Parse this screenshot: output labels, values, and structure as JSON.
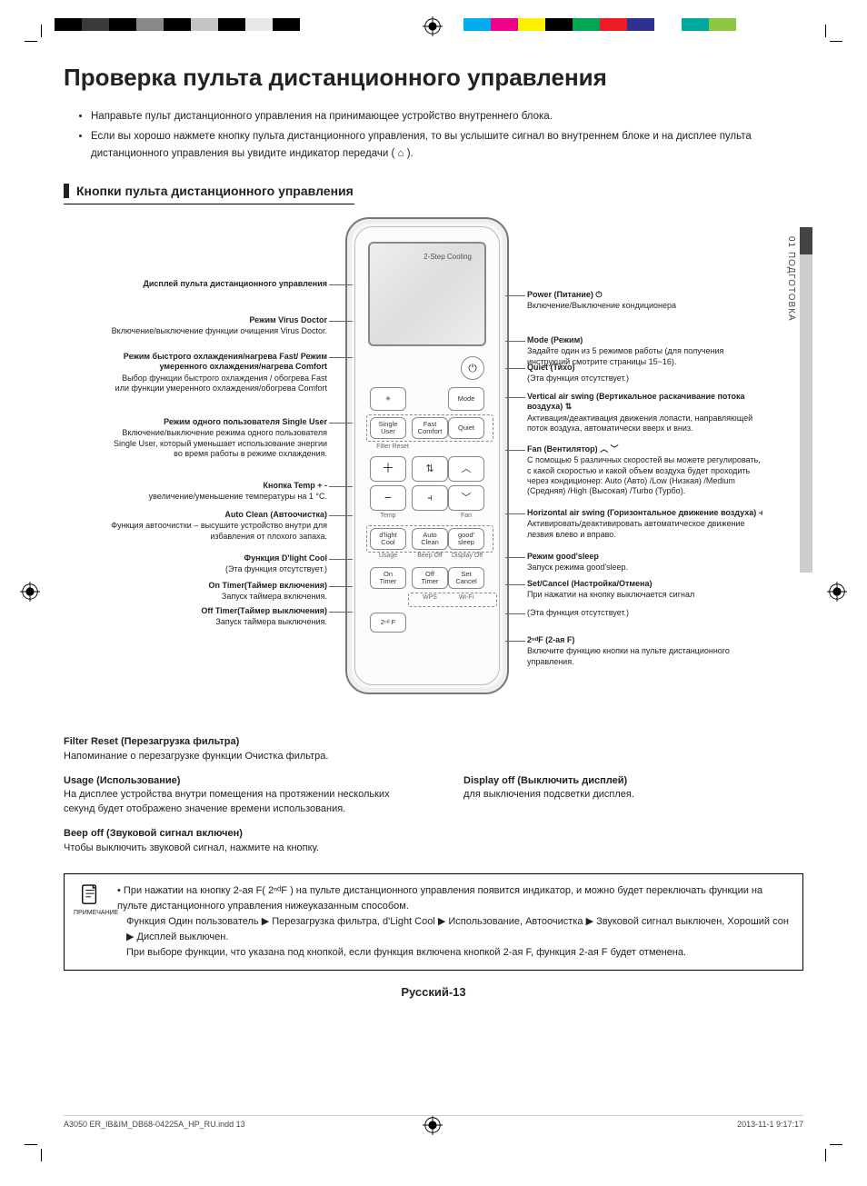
{
  "colorbar_left": [
    "#000",
    "#3a3a3a",
    "#000",
    "#888",
    "#000",
    "#c4c4c4",
    "#000",
    "#e8e8e8",
    "#000",
    "#fff"
  ],
  "colorbar_right": [
    "#00aeef",
    "#ec008c",
    "#fff200",
    "#000",
    "#00a651",
    "#ed1c24",
    "#2e3192",
    "#fff",
    "#00a99d",
    "#8dc63f"
  ],
  "side_tab": "01  ПОДГОТОВКА",
  "title": "Проверка пульта дистанционного управления",
  "intro": [
    "Направьте пульт дистанционного управления на принимающее устройство внутреннего блока.",
    "Если вы хорошо нажмете кнопку пульта дистанционного управления, то вы услышите сигнал во внутреннем блоке и на дисплее пульта дистанционного управления вы увидите индикатор передачи ( ⌂ )."
  ],
  "section_heading": "Кнопки пульта дистанционного управления",
  "remote": {
    "screen_label": "2-Step Cooling",
    "buttons": {
      "power": "⏻",
      "virus": "✳",
      "mode": "Mode",
      "single_user": "Single\nUser",
      "fast_comfort": "Fast\nComfort",
      "quiet": "Quiet",
      "filter_reset": "Filter Reset",
      "temp_up": "＋",
      "temp_dn": "−",
      "temp_lbl": "Temp",
      "vswing": "⇅",
      "hswing": "⫞",
      "fan_up": "︿",
      "fan_dn": "﹀",
      "fan_lbl": "Fan",
      "dlight": "d'light\nCool",
      "auto_clean": "Auto\nClean",
      "good_sleep": "good'\nsleep",
      "usage": "Usage",
      "beep_off": "Beep Off",
      "display_off": "Display Off",
      "on_timer": "On\nTimer",
      "off_timer": "Off\nTimer",
      "set_cancel": "Set\nCancel",
      "wps": "WPS",
      "wifi": "Wi-Fi",
      "second_f": "2ⁿᵈ F"
    }
  },
  "callouts_left": [
    {
      "t": "Дисплей пульта дистанционного управления",
      "d": ""
    },
    {
      "t": "Режим Virus Doctor",
      "d": "Включение/выключение функции очищения Virus Doctor."
    },
    {
      "t": "Режим быстрого охлаждения/нагрева Fast/ Режим умеренного охлаждения/нагрева Comfort",
      "d": "Выбор функции быстрого охлаждения / обогрева Fast или функции умеренного охлаждения/обогрева Comfort"
    },
    {
      "t": "Режим одного пользователя Single User",
      "d": "Включение/выключение режима одного пользователя Single User, который уменьшает использование энергии во время работы в режиме охлаждения."
    },
    {
      "t": "Кнопка Temp + -",
      "d": "увеличение/уменьшение температуры на 1 °С."
    },
    {
      "t": "Auto Clean (Автоочистка)",
      "d": "Функция автоочистки – высушите устройство внутри для избавления от плохого запаха."
    },
    {
      "t": "Функция D'light Cool",
      "d": "(Эта функция отсутствует.)"
    },
    {
      "t": "On Timer(Таймер включения)",
      "d": "Запуск таймера включения."
    },
    {
      "t": "Off Timer(Таймер выключения)",
      "d": "Запуск таймера выключения."
    }
  ],
  "callouts_right": [
    {
      "t": "Power (Питание) ⏻",
      "d": "Включение/Выключение кондиционера"
    },
    {
      "t": "Mode (Режим)",
      "d": "Задайте один из 5 режимов работы (для получения инструкций смотрите страницы 15~16)."
    },
    {
      "t": "Quiet (Тихо)",
      "d": "(Эта функция отсутствует.)"
    },
    {
      "t": "Vertical air swing  (Вертикальное раскачивание потока воздуха) ⇅",
      "d": "Активация/деактивация движения лопасти, направляющей поток воздуха, автоматически вверх и вниз."
    },
    {
      "t": "Fan (Вентилятор) ︿ ﹀",
      "d": "С помощью 5 различных скоростей вы можете регулировать, с какой скоростью и какой объем воздуха будет проходить через кондиционер: Auto (Авто) /Low (Низкая) /Medium (Средняя) /High (Высокая) /Turbo (Турбо)."
    },
    {
      "t": "Horizontal air swing (Горизонтальное движение воздуха) ⫞",
      "d": "Активировать/деактивировать автоматическое движение лезвия влево и вправо."
    },
    {
      "t": "Режим good'sleep",
      "d": "Запуск режима good'sleep."
    },
    {
      "t": "Set/Cancel (Настройка/Отмена)",
      "d": "При нажатии на кнопку выключается сигнал"
    },
    {
      "t": "",
      "d": "(Эта функция отсутствует.)"
    },
    {
      "t": "2ⁿᵈF (2-ая F)",
      "d": "Включите функцию кнопки на пульте дистанционного управления."
    }
  ],
  "bottom": [
    {
      "t": "Filter Reset (Перезагрузка фильтра)",
      "d": "Напоминание о перезагрузке функции Очистка фильтра."
    },
    {
      "t": "Usage (Использование)",
      "d": "На дисплее устройства внутри помещения на протяжении нескольких секунд будет отображено значение времени использования."
    },
    {
      "t": "Display off (Выключить дисплей)",
      "d": "для выключения подсветки дисплея."
    },
    {
      "t": "Beep off (Звуковой сигнал включен)",
      "d": "Чтобы выключить звуковой сигнал, нажмите на кнопку."
    }
  ],
  "note_label": "ПРИМЕЧАНИЕ",
  "note_lines": [
    "При нажатии на кнопку 2-ая F( 2ⁿᵈF ) на пульте дистанционного управления появится индикатор, и можно будет переключать функции на пульте дистанционного управления нижеуказанным способом.",
    "Функция Один пользователь ▶ Перезагрузка фильтра, d'Light Cool ▶ Использование, Автоочистка ▶ Звуковой сигнал выключен, Хороший сон ▶ Дисплей выключен.",
    "При выборе функции, что указана под кнопкой, если функция включена кнопкой 2-ая F, функция 2-ая F будет отменена."
  ],
  "page_number": "Русский-13",
  "footer_left": "A3050 ER_IB&IM_DB68-04225A_HP_RU.indd   13",
  "footer_right": "2013-11-1   9:17:17",
  "layout": {
    "left_y": [
      68,
      108,
      148,
      220,
      290,
      322,
      370,
      400,
      428
    ],
    "right_y": [
      80,
      130,
      160,
      192,
      250,
      320,
      368,
      398,
      430,
      460
    ]
  }
}
